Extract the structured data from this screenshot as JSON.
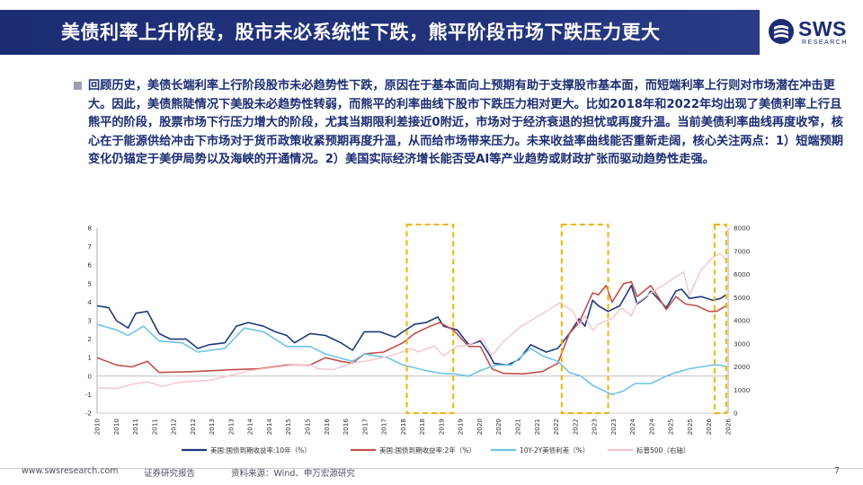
{
  "header": {
    "title": "美债利率上升阶段，股市未必系统性下跌，熊平阶段市场下跌压力更大",
    "logo_text": "SWS",
    "logo_sub": "RESEARCH"
  },
  "body": {
    "paragraph": "回顾历史，美债长端利率上行阶段股市未必趋势性下跌，原因在于基本面向上预期有助于支撑股市基本面，而短端利率上行则对市场潜在冲击更大。因此，美债熊陡情况下美股未必趋势性转弱，而熊平的利率曲线下股市下跌压力相对更大。比如2018年和2022年均出现了美债利率上行且熊平的阶段，股票市场下行压力增大的阶段，尤其当期限利差接近0附近，市场对于经济衰退的担忧或再度升温。当前美债利率曲线再度收窄，核心在于能源供给冲击下市场对于货币政策收紧预期再度升温，从而给市场带来压力。未来收益率曲线能否重新走阔，核心关注两点：1）短端预期变化仍锚定于美伊局势以及海峡的开通情况。2）美国实际经济增长能否受AI等产业趋势或财政扩张而驱动趋势性走强。"
  },
  "chart_data": {
    "type": "line",
    "x_labels": [
      "2010",
      "2010",
      "2011",
      "2011",
      "2012",
      "2012",
      "2013",
      "2013",
      "2014",
      "2014",
      "2015",
      "2015",
      "2016",
      "2016",
      "2017",
      "2017",
      "2018",
      "2018",
      "2019",
      "2019",
      "2020",
      "2020",
      "2021",
      "2021",
      "2022",
      "2022",
      "2023",
      "2023",
      "2024",
      "2024",
      "2025",
      "2025",
      "2026",
      "2026"
    ],
    "y_left": {
      "min": -2,
      "max": 8,
      "ticks": [
        "-2",
        "-1",
        "0",
        "1",
        "2",
        "3",
        "4",
        "5",
        "6",
        "7",
        "8"
      ]
    },
    "y_right": {
      "min": 0,
      "max": 8000,
      "ticks": [
        "0",
        "1000",
        "2000",
        "3000",
        "4000",
        "5000",
        "6000",
        "7000",
        "8000"
      ]
    },
    "series": [
      {
        "name": "美国:国债到期收益率:10年（%）",
        "color": "#1f3a7a",
        "axis": "left",
        "points": [
          [
            2010.0,
            3.8
          ],
          [
            2010.3,
            3.7
          ],
          [
            2010.5,
            3.0
          ],
          [
            2010.8,
            2.6
          ],
          [
            2011.0,
            3.4
          ],
          [
            2011.3,
            3.5
          ],
          [
            2011.6,
            2.3
          ],
          [
            2011.9,
            2.0
          ],
          [
            2012.3,
            2.0
          ],
          [
            2012.6,
            1.5
          ],
          [
            2012.9,
            1.7
          ],
          [
            2013.3,
            1.8
          ],
          [
            2013.6,
            2.7
          ],
          [
            2013.9,
            2.9
          ],
          [
            2014.3,
            2.7
          ],
          [
            2014.6,
            2.4
          ],
          [
            2014.9,
            2.2
          ],
          [
            2015.1,
            1.8
          ],
          [
            2015.5,
            2.3
          ],
          [
            2015.9,
            2.2
          ],
          [
            2016.3,
            1.8
          ],
          [
            2016.6,
            1.4
          ],
          [
            2016.9,
            2.4
          ],
          [
            2017.3,
            2.4
          ],
          [
            2017.7,
            2.1
          ],
          [
            2017.9,
            2.4
          ],
          [
            2018.2,
            2.8
          ],
          [
            2018.5,
            2.9
          ],
          [
            2018.8,
            3.2
          ],
          [
            2018.95,
            2.7
          ],
          [
            2019.3,
            2.5
          ],
          [
            2019.6,
            1.7
          ],
          [
            2019.9,
            1.9
          ],
          [
            2020.15,
            1.1
          ],
          [
            2020.25,
            0.7
          ],
          [
            2020.6,
            0.6
          ],
          [
            2020.9,
            0.9
          ],
          [
            2021.2,
            1.7
          ],
          [
            2021.6,
            1.3
          ],
          [
            2021.9,
            1.5
          ],
          [
            2022.2,
            2.3
          ],
          [
            2022.45,
            3.1
          ],
          [
            2022.6,
            2.7
          ],
          [
            2022.8,
            4.1
          ],
          [
            2022.95,
            3.8
          ],
          [
            2023.2,
            3.5
          ],
          [
            2023.5,
            3.8
          ],
          [
            2023.8,
            4.9
          ],
          [
            2023.95,
            3.9
          ],
          [
            2024.2,
            4.3
          ],
          [
            2024.3,
            4.6
          ],
          [
            2024.7,
            3.7
          ],
          [
            2024.95,
            4.6
          ],
          [
            2025.1,
            4.7
          ],
          [
            2025.3,
            4.2
          ],
          [
            2025.6,
            4.3
          ],
          [
            2025.9,
            4.1
          ],
          [
            2026.1,
            4.2
          ],
          [
            2026.25,
            4.4
          ]
        ]
      },
      {
        "name": "美国:国债到期收益率:2年（%）",
        "color": "#c0504d",
        "axis": "left",
        "points": [
          [
            2010.0,
            1.0
          ],
          [
            2010.5,
            0.6
          ],
          [
            2010.9,
            0.5
          ],
          [
            2011.3,
            0.8
          ],
          [
            2011.6,
            0.2
          ],
          [
            2012.5,
            0.25
          ],
          [
            2013.5,
            0.35
          ],
          [
            2014.2,
            0.4
          ],
          [
            2014.9,
            0.6
          ],
          [
            2015.5,
            0.6
          ],
          [
            2015.9,
            1.0
          ],
          [
            2016.3,
            0.8
          ],
          [
            2016.6,
            0.7
          ],
          [
            2016.9,
            1.2
          ],
          [
            2017.4,
            1.3
          ],
          [
            2017.9,
            1.8
          ],
          [
            2018.2,
            2.3
          ],
          [
            2018.6,
            2.7
          ],
          [
            2018.85,
            2.9
          ],
          [
            2019.2,
            2.5
          ],
          [
            2019.6,
            1.6
          ],
          [
            2019.9,
            1.6
          ],
          [
            2020.2,
            0.4
          ],
          [
            2020.5,
            0.15
          ],
          [
            2021.0,
            0.12
          ],
          [
            2021.5,
            0.25
          ],
          [
            2021.9,
            0.7
          ],
          [
            2022.2,
            2.3
          ],
          [
            2022.45,
            2.9
          ],
          [
            2022.8,
            4.5
          ],
          [
            2022.95,
            4.4
          ],
          [
            2023.15,
            4.9
          ],
          [
            2023.3,
            4.0
          ],
          [
            2023.6,
            5.0
          ],
          [
            2023.8,
            5.1
          ],
          [
            2023.95,
            4.3
          ],
          [
            2024.3,
            4.9
          ],
          [
            2024.7,
            3.6
          ],
          [
            2024.95,
            4.3
          ],
          [
            2025.2,
            3.9
          ],
          [
            2025.5,
            3.8
          ],
          [
            2025.8,
            3.5
          ],
          [
            2026.0,
            3.5
          ],
          [
            2026.25,
            3.8
          ]
        ]
      },
      {
        "name": "10Y-2Y美债利差（%）",
        "color": "#6fc3e8",
        "axis": "left",
        "points": [
          [
            2010.0,
            2.8
          ],
          [
            2010.5,
            2.5
          ],
          [
            2010.8,
            2.2
          ],
          [
            2011.2,
            2.7
          ],
          [
            2011.6,
            1.9
          ],
          [
            2012.2,
            1.8
          ],
          [
            2012.6,
            1.3
          ],
          [
            2013.3,
            1.5
          ],
          [
            2013.8,
            2.6
          ],
          [
            2014.3,
            2.4
          ],
          [
            2014.9,
            1.6
          ],
          [
            2015.5,
            1.6
          ],
          [
            2015.9,
            1.2
          ],
          [
            2016.6,
            0.8
          ],
          [
            2016.9,
            1.2
          ],
          [
            2017.5,
            1.0
          ],
          [
            2017.9,
            0.6
          ],
          [
            2018.5,
            0.3
          ],
          [
            2018.9,
            0.15
          ],
          [
            2019.3,
            0.1
          ],
          [
            2019.6,
            0.0
          ],
          [
            2019.9,
            0.3
          ],
          [
            2020.3,
            0.6
          ],
          [
            2020.7,
            0.6
          ],
          [
            2021.2,
            1.5
          ],
          [
            2021.5,
            1.1
          ],
          [
            2021.9,
            0.8
          ],
          [
            2022.2,
            0.2
          ],
          [
            2022.5,
            0.0
          ],
          [
            2022.8,
            -0.5
          ],
          [
            2023.0,
            -0.7
          ],
          [
            2023.3,
            -1.0
          ],
          [
            2023.6,
            -0.8
          ],
          [
            2023.9,
            -0.4
          ],
          [
            2024.3,
            -0.4
          ],
          [
            2024.7,
            0.0
          ],
          [
            2024.95,
            0.2
          ],
          [
            2025.3,
            0.4
          ],
          [
            2025.6,
            0.5
          ],
          [
            2025.9,
            0.6
          ],
          [
            2026.1,
            0.6
          ],
          [
            2026.25,
            0.5
          ]
        ]
      },
      {
        "name": "标普500（右轴）",
        "color": "#f2c6cc",
        "axis": "right",
        "points": [
          [
            2010.0,
            1100
          ],
          [
            2010.5,
            1060
          ],
          [
            2010.9,
            1250
          ],
          [
            2011.3,
            1350
          ],
          [
            2011.7,
            1150
          ],
          [
            2012.0,
            1300
          ],
          [
            2012.5,
            1380
          ],
          [
            2012.9,
            1420
          ],
          [
            2013.5,
            1650
          ],
          [
            2013.95,
            1840
          ],
          [
            2014.5,
            1960
          ],
          [
            2014.95,
            2060
          ],
          [
            2015.5,
            2100
          ],
          [
            2015.7,
            1920
          ],
          [
            2016.1,
            1880
          ],
          [
            2016.6,
            2170
          ],
          [
            2016.95,
            2250
          ],
          [
            2017.5,
            2450
          ],
          [
            2017.95,
            2680
          ],
          [
            2018.1,
            2800
          ],
          [
            2018.3,
            2650
          ],
          [
            2018.7,
            2900
          ],
          [
            2018.95,
            2480
          ],
          [
            2019.3,
            2880
          ],
          [
            2019.6,
            2950
          ],
          [
            2019.95,
            3230
          ],
          [
            2020.2,
            2480
          ],
          [
            2020.5,
            3100
          ],
          [
            2020.95,
            3750
          ],
          [
            2021.5,
            4300
          ],
          [
            2021.95,
            4770
          ],
          [
            2022.3,
            4400
          ],
          [
            2022.45,
            3800
          ],
          [
            2022.6,
            4200
          ],
          [
            2022.8,
            3580
          ],
          [
            2022.95,
            3840
          ],
          [
            2023.3,
            4100
          ],
          [
            2023.55,
            4550
          ],
          [
            2023.8,
            4200
          ],
          [
            2023.95,
            4770
          ],
          [
            2024.3,
            5200
          ],
          [
            2024.6,
            5500
          ],
          [
            2024.95,
            5900
          ],
          [
            2025.15,
            6100
          ],
          [
            2025.3,
            5100
          ],
          [
            2025.6,
            6200
          ],
          [
            2025.95,
            6800
          ],
          [
            2026.1,
            6900
          ],
          [
            2026.25,
            6600
          ]
        ]
      }
    ],
    "highlight_ranges": [
      [
        2018.0,
        2019.2
      ],
      [
        2022.0,
        2023.2
      ],
      [
        2025.95,
        2026.25
      ]
    ],
    "legend_position": "bottom"
  },
  "footer": {
    "website": "www.swsresearch.com",
    "doc_type": "证券研究报告",
    "source": "资料来源：Wind、申万宏源研究",
    "page": "7"
  }
}
